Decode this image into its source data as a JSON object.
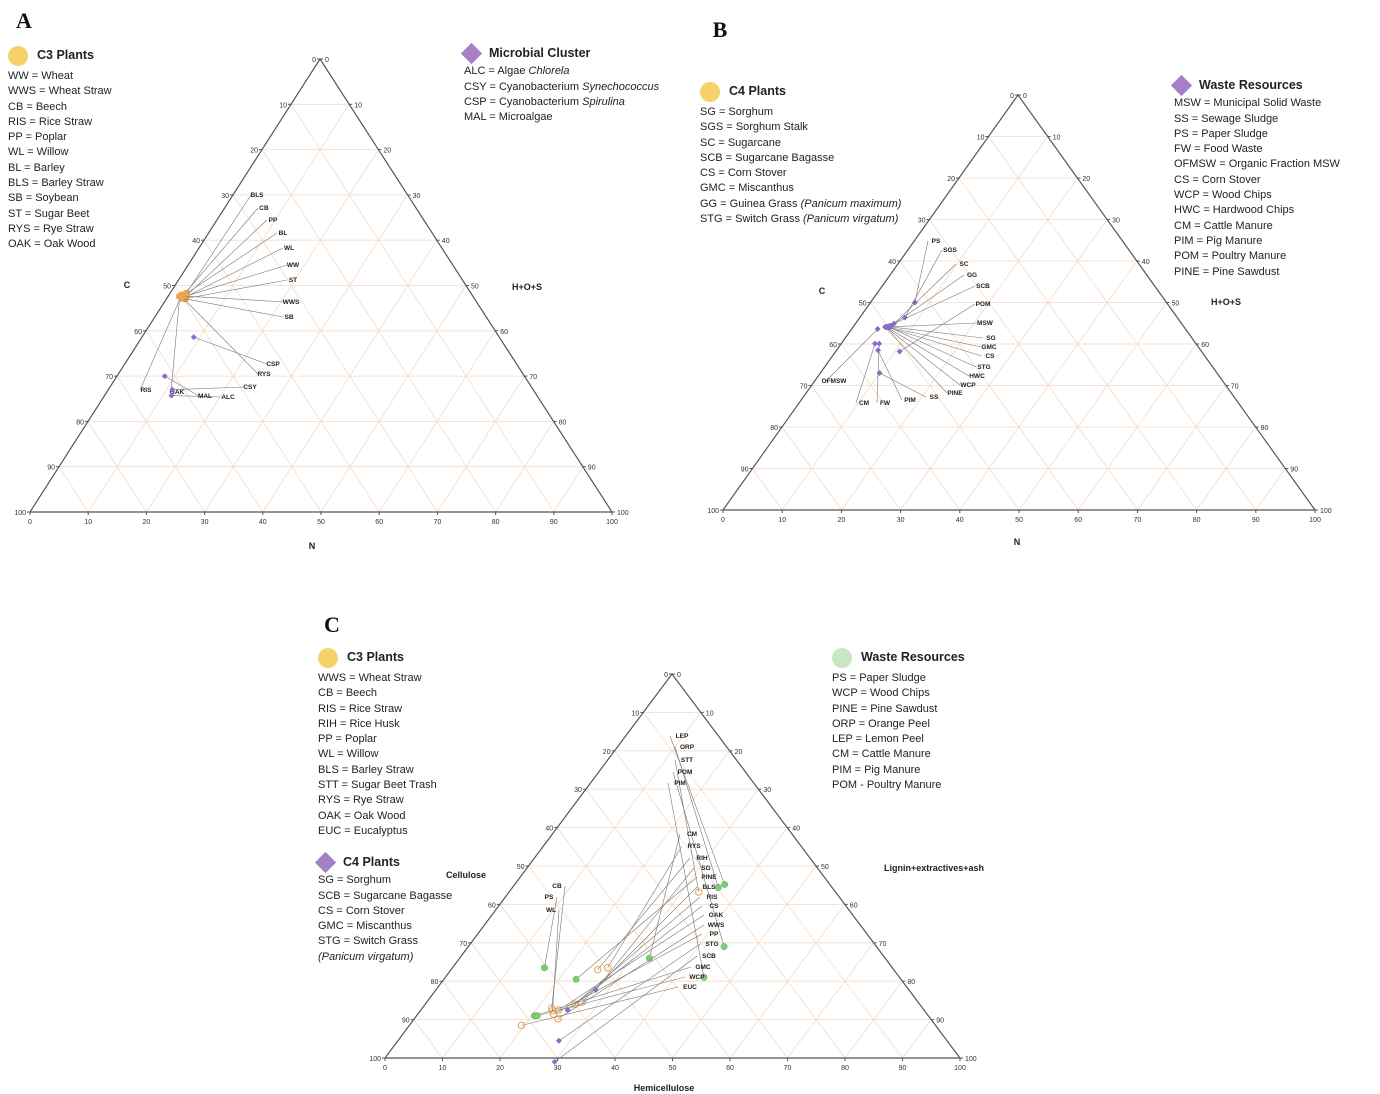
{
  "colors": {
    "c3": "#f7d26b",
    "c3_marker": "#eda24f",
    "c4": "#a57fc7",
    "c4_marker": "#8a6ccd",
    "waste": "#c7e6c1",
    "waste_marker": "#7fcb79",
    "grid": "#f6d9c4"
  },
  "panels": {
    "a": {
      "letter": "A",
      "legend_left": {
        "title": "C3 Plants",
        "icon": "yellow-circle",
        "items": [
          "WW = Wheat",
          "WWS = Wheat Straw",
          "CB = Beech",
          "RIS = Rice Straw",
          "PP = Poplar",
          "WL = Willow",
          "BL = Barley",
          "BLS = Barley Straw",
          "SB = Soybean",
          "ST = Sugar Beet",
          "RYS = Rye Straw",
          "OAK = Oak Wood"
        ]
      },
      "legend_right": {
        "title": "Microbial Cluster",
        "icon": "purple-diamond",
        "items": [
          {
            "pre": "ALC = Algae ",
            "it": "Chlorela"
          },
          {
            "pre": "CSY = Cyanobacterium ",
            "it": "Synechococcus"
          },
          {
            "pre": "CSP = Cyanobacterium ",
            "it": "Spirulina"
          },
          {
            "pre": "MAL = Microalgae",
            "it": ""
          }
        ]
      }
    },
    "b": {
      "letter": "B",
      "legend_left": {
        "title": "C4 Plants",
        "icon": "yellow-circle",
        "items": [
          {
            "pre": "SG = Sorghum",
            "it": ""
          },
          {
            "pre": "SGS = Sorghum Stalk",
            "it": ""
          },
          {
            "pre": "SC = Sugarcane",
            "it": ""
          },
          {
            "pre": "SCB = Sugarcane Bagasse",
            "it": ""
          },
          {
            "pre": "CS = Corn Stover",
            "it": ""
          },
          {
            "pre": "GMC = Miscanthus",
            "it": ""
          },
          {
            "pre": "GG = Guinea Grass ",
            "it": "(Panicum maximum)"
          },
          {
            "pre": "STG = Switch Grass ",
            "it": "(Panicum virgatum)"
          }
        ]
      },
      "legend_right": {
        "title": "Waste Resources",
        "icon": "purple-diamond",
        "items": [
          "MSW = Municipal Solid Waste",
          "SS = Sewage Sludge",
          "PS = Paper Sludge",
          "FW = Food Waste",
          "OFMSW = Organic Fraction MSW",
          "CS = Corn Stover",
          "WCP = Wood Chips",
          "HWC = Hardwood Chips",
          "CM = Cattle Manure",
          "PIM = Pig Manure",
          "POM = Poultry Manure",
          "PINE = Pine Sawdust"
        ]
      }
    },
    "c": {
      "letter": "C",
      "legend_left": {
        "title": "C3 Plants",
        "icon": "yellow-circle",
        "items": [
          "WWS = Wheat Straw",
          "CB = Beech",
          "RIS = Rice Straw",
          "RIH = Rice Husk",
          "PP = Poplar",
          "WL = Willow",
          "BLS = Barley Straw",
          "STT = Sugar Beet Trash",
          "RYS = Rye Straw",
          "OAK = Oak Wood",
          "EUC = Eucalyptus"
        ]
      },
      "legend_left2": {
        "title": "C4 Plants",
        "icon": "purple-diamond",
        "items": [
          {
            "pre": "SG  = Sorghum",
            "it": ""
          },
          {
            "pre": "SCB = Sugarcane Bagasse",
            "it": ""
          },
          {
            "pre": "CS = Corn Stover",
            "it": ""
          },
          {
            "pre": "GMC = Miscanthus",
            "it": ""
          },
          {
            "pre": "STG = Switch Grass",
            "it": ""
          },
          {
            "pre": "",
            "it": "(Panicum virgatum)"
          }
        ]
      },
      "legend_right": {
        "title": "Waste Resources",
        "icon": "green-circle",
        "items": [
          "PS = Paper Sludge",
          "WCP = Wood Chips",
          "PINE = Pine Sawdust",
          "ORP = Orange Peel",
          "LEP = Lemon Peel",
          "CM = Cattle Manure",
          "PIM = Pig Manure",
          "POM - Poultry Manure"
        ]
      }
    }
  },
  "chart_data": [
    {
      "id": "a",
      "type": "scatter",
      "subtype": "ternary",
      "axes": {
        "bottom": "N",
        "left": "C",
        "right": "H+O+S"
      },
      "ticks": [
        "0",
        "10",
        "20",
        "30",
        "40",
        "50",
        "60",
        "70",
        "80",
        "90",
        "100"
      ],
      "points": [
        {
          "label": "BLS",
          "group": "c3",
          "c": 49,
          "n": 2.8
        },
        {
          "label": "CB",
          "group": "c3",
          "c": 49.6,
          "n": 2.5
        },
        {
          "label": "PP",
          "group": "c3",
          "c": 49.5,
          "n": 3.0
        },
        {
          "label": "BL",
          "group": "c3",
          "c": 49.3,
          "n": 2.7
        },
        {
          "label": "WL",
          "group": "c3",
          "c": 49.8,
          "n": 2.9
        },
        {
          "label": "WW",
          "group": "c3",
          "c": 49.2,
          "n": 3.1
        },
        {
          "label": "ST",
          "group": "c3",
          "c": 49.7,
          "n": 3.2
        },
        {
          "label": "WWS",
          "group": "c3",
          "c": 49.9,
          "n": 2.4
        },
        {
          "label": "SB",
          "group": "c3",
          "c": 50.2,
          "n": 2.6
        },
        {
          "label": "RIS",
          "group": "c3",
          "c": 50.0,
          "n": 2.2
        },
        {
          "label": "OAK",
          "group": "c3",
          "c": 50.4,
          "n": 2.0
        },
        {
          "label": "RYS",
          "group": "c3",
          "c": 50.1,
          "n": 2.3
        },
        {
          "label": "CSP",
          "group": "microbial",
          "c": 52.5,
          "n": 8.9
        },
        {
          "label": "CSY",
          "group": "microbial",
          "c": 62.0,
          "n": 11.0
        },
        {
          "label": "ALC",
          "group": "microbial",
          "c": 62.8,
          "n": 11.5
        },
        {
          "label": "MAL",
          "group": "microbial",
          "c": 61.8,
          "n": 8.2
        }
      ]
    },
    {
      "id": "b",
      "type": "scatter",
      "subtype": "ternary",
      "axes": {
        "bottom": "N",
        "left": "C",
        "right": "H+O+S"
      },
      "ticks": [
        "0",
        "10",
        "20",
        "30",
        "40",
        "50",
        "60",
        "70",
        "80",
        "90",
        "100"
      ],
      "points": [
        {
          "label": "PS",
          "group": "waste",
          "c": 42.5,
          "n": 7.5
        },
        {
          "label": "SGS",
          "group": "c4",
          "c": 46.0,
          "n": 7.6
        },
        {
          "label": "SC",
          "group": "c4",
          "c": 48.6,
          "n": 6.5
        },
        {
          "label": "GG",
          "group": "c4",
          "c": 49.3,
          "n": 6.3
        },
        {
          "label": "SCB",
          "group": "c4",
          "c": 49.6,
          "n": 6.0
        },
        {
          "label": "POM",
          "group": "waste",
          "c": 51.0,
          "n": 10.8
        },
        {
          "label": "MSW",
          "group": "waste",
          "c": 50.2,
          "n": 5.7
        },
        {
          "label": "SG",
          "group": "c4",
          "c": 50.0,
          "n": 5.8
        },
        {
          "label": "GMC",
          "group": "c4",
          "c": 49.9,
          "n": 6.1
        },
        {
          "label": "CS",
          "group": "c4",
          "c": 50.1,
          "n": 5.9
        },
        {
          "label": "STG",
          "group": "c4",
          "c": 49.8,
          "n": 6.2
        },
        {
          "label": "HWC",
          "group": "waste",
          "c": 50.3,
          "n": 5.6
        },
        {
          "label": "WCP",
          "group": "waste",
          "c": 50.4,
          "n": 5.5
        },
        {
          "label": "PINE",
          "group": "waste",
          "c": 50.5,
          "n": 5.4
        },
        {
          "label": "SS",
          "group": "waste",
          "c": 57.0,
          "n": 10.0
        },
        {
          "label": "PIM",
          "group": "waste",
          "c": 54.5,
          "n": 7.0
        },
        {
          "label": "FW",
          "group": "waste",
          "c": 53.5,
          "n": 6.4
        },
        {
          "label": "CM",
          "group": "waste",
          "c": 54.2,
          "n": 5.7
        },
        {
          "label": "OFMSW",
          "group": "waste",
          "c": 52.0,
          "n": 4.4
        }
      ]
    },
    {
      "id": "c",
      "type": "scatter",
      "subtype": "ternary",
      "axes": {
        "bottom": "Hemicellulose",
        "left": "Cellulose",
        "right": "Lignin+extractives+ash"
      },
      "ticks": [
        "0",
        "10",
        "20",
        "30",
        "40",
        "50",
        "60",
        "70",
        "80",
        "90",
        "100"
      ],
      "points": [
        {
          "label": "LEP",
          "group": "waste",
          "cel": 18.3,
          "hemi": 36.5
        },
        {
          "label": "ORP",
          "group": "waste",
          "cel": 19.8,
          "hemi": 35.8
        },
        {
          "label": "STT",
          "group": "c3",
          "cel": 23.8,
          "hemi": 33.0
        },
        {
          "label": "POM",
          "group": "waste",
          "cel": 26.5,
          "hemi": 44.5
        },
        {
          "label": "PIM",
          "group": "waste",
          "cel": 34.0,
          "hemi": 45.0
        },
        {
          "label": "CM",
          "group": "waste",
          "cel": 41.0,
          "hemi": 33.0
        },
        {
          "label": "RYS",
          "group": "c3",
          "cel": 49.5,
          "hemi": 27.0
        },
        {
          "label": "RIH",
          "group": "c3",
          "cel": 51.5,
          "hemi": 25.5
        },
        {
          "label": "SG",
          "group": "c4",
          "cel": 54.5,
          "hemi": 27.8
        },
        {
          "label": "PINE",
          "group": "waste",
          "cel": 56.5,
          "hemi": 23.0
        },
        {
          "label": "BLS",
          "group": "c3",
          "cel": 58.5,
          "hemi": 27.0
        },
        {
          "label": "RIS",
          "group": "c3",
          "cel": 60.0,
          "hemi": 26.0
        },
        {
          "label": "CS",
          "group": "c4",
          "cel": 62.0,
          "hemi": 25.5
        },
        {
          "label": "OAK",
          "group": "c3",
          "cel": 63.5,
          "hemi": 24.0
        },
        {
          "label": "WWS",
          "group": "c3",
          "cel": 64.8,
          "hemi": 25.0
        },
        {
          "label": "PP",
          "group": "c3",
          "cel": 65.0,
          "hemi": 23.6
        },
        {
          "label": "STG",
          "group": "c4",
          "cel": 67.5,
          "hemi": 28.0
        },
        {
          "label": "SCB",
          "group": "c4",
          "cel": 71.0,
          "hemi": 30.0
        },
        {
          "label": "GMC",
          "group": "waste",
          "cel": 68.5,
          "hemi": 20.5
        },
        {
          "label": "WCP",
          "group": "waste",
          "cel": 68.0,
          "hemi": 21.0
        },
        {
          "label": "EUC",
          "group": "c3",
          "cel": 72.0,
          "hemi": 19.5
        },
        {
          "label": "CB",
          "group": "c3",
          "cel": 64.5,
          "hemi": 22.5
        },
        {
          "label": "PS",
          "group": "waste",
          "cel": 60.5,
          "hemi": 16.0
        },
        {
          "label": "WL",
          "group": "c3",
          "cel": 64.7,
          "hemi": 23.0
        }
      ]
    }
  ]
}
